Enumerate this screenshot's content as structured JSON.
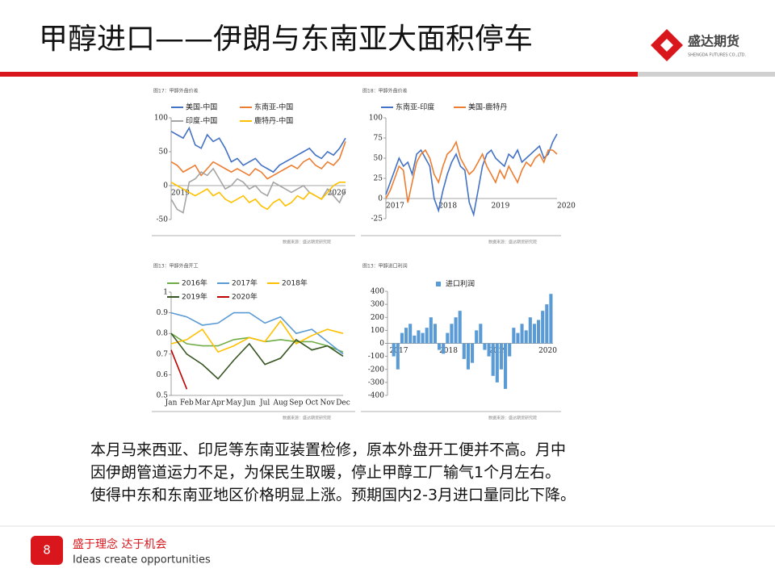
{
  "header": {
    "title": "甲醇进口——伊朗与东南亚大面积停车",
    "logo_text": "盛达期货",
    "logo_sub": "SHENGDA FUTURES CO.,LTD."
  },
  "chart_data": [
    {
      "type": "line",
      "title": "图17：甲醇外盘价差",
      "source": "数据来源：盛达期货研究院",
      "ylim": [
        -50,
        100
      ],
      "yticks": [
        -50,
        0,
        50,
        100
      ],
      "categories": [
        "2019",
        null,
        null,
        null,
        null,
        null,
        null,
        null,
        null,
        null,
        null,
        null,
        null,
        null,
        null,
        null,
        null,
        null,
        null,
        null,
        null,
        null,
        null,
        null,
        null,
        null,
        "2020",
        null,
        null,
        null
      ],
      "series": [
        {
          "name": "美国-中国",
          "color": "#4472c4",
          "values": [
            80,
            75,
            70,
            85,
            60,
            55,
            75,
            65,
            70,
            55,
            35,
            40,
            30,
            35,
            40,
            30,
            25,
            20,
            30,
            35,
            40,
            45,
            50,
            55,
            45,
            40,
            50,
            45,
            55,
            70
          ]
        },
        {
          "name": "东南亚-中国",
          "color": "#ed7d31",
          "values": [
            35,
            30,
            20,
            25,
            30,
            15,
            25,
            35,
            30,
            25,
            20,
            25,
            20,
            15,
            25,
            20,
            10,
            15,
            20,
            25,
            30,
            25,
            35,
            40,
            30,
            25,
            35,
            30,
            40,
            65
          ]
        },
        {
          "name": "印度-中国",
          "color": "#a5a5a5",
          "values": [
            -20,
            -35,
            -40,
            5,
            10,
            20,
            15,
            25,
            10,
            -5,
            0,
            10,
            5,
            -5,
            0,
            -10,
            -15,
            5,
            0,
            -5,
            -10,
            -5,
            0,
            -10,
            -15,
            -20,
            -5,
            -15,
            -25,
            -5
          ]
        },
        {
          "name": "鹿特丹-中国",
          "color": "#ffc000",
          "values": [
            5,
            0,
            -5,
            -10,
            -15,
            -10,
            -5,
            -15,
            -10,
            -20,
            -25,
            -20,
            -15,
            -25,
            -20,
            -30,
            -35,
            -25,
            -20,
            -30,
            -25,
            -15,
            -20,
            -10,
            -15,
            -20,
            -10,
            0,
            5,
            5
          ]
        }
      ]
    },
    {
      "type": "line",
      "title": "图18：甲醇外盘价差",
      "source": "数据来源：盛达期货研究院",
      "ylim": [
        -25,
        100
      ],
      "yticks": [
        -25,
        0,
        25,
        50,
        75,
        100
      ],
      "categories": [
        "2017",
        null,
        null,
        null,
        null,
        null,
        null,
        null,
        null,
        null,
        null,
        null,
        "2018",
        null,
        null,
        null,
        null,
        null,
        null,
        null,
        null,
        null,
        null,
        null,
        "2019",
        null,
        null,
        null,
        null,
        null,
        null,
        null,
        null,
        null,
        null,
        null,
        null,
        null,
        null,
        "2020"
      ],
      "series": [
        {
          "name": "东南亚-印度",
          "color": "#4472c4",
          "values": [
            5,
            20,
            35,
            50,
            40,
            45,
            30,
            55,
            60,
            50,
            40,
            0,
            -15,
            10,
            30,
            45,
            55,
            40,
            35,
            -5,
            -20,
            10,
            40,
            55,
            60,
            50,
            45,
            40,
            55,
            50,
            60,
            45,
            50,
            55,
            60,
            65,
            50,
            55,
            70,
            80
          ]
        },
        {
          "name": "美国-鹿特丹",
          "color": "#ed7d31",
          "values": [
            0,
            10,
            25,
            40,
            35,
            -5,
            20,
            45,
            55,
            60,
            50,
            30,
            20,
            40,
            55,
            60,
            70,
            50,
            40,
            30,
            35,
            45,
            55,
            40,
            30,
            20,
            35,
            25,
            40,
            30,
            20,
            35,
            45,
            40,
            50,
            55,
            45,
            60,
            60,
            55
          ]
        }
      ]
    },
    {
      "type": "line",
      "title": "图13：甲醇外盘开工",
      "source": "数据来源：盛达期货研究院",
      "ylim": [
        0.5,
        1
      ],
      "yticks": [
        0.5,
        0.6,
        0.7,
        0.8,
        0.9,
        1
      ],
      "categories": [
        "Jan",
        "Feb",
        "Mar",
        "Apr",
        "May",
        "Jun",
        "Jul",
        "Aug",
        "Sep",
        "Oct",
        "Nov",
        "Dec"
      ],
      "series": [
        {
          "name": "2016年",
          "color": "#70ad47",
          "values": [
            0.8,
            0.75,
            0.74,
            0.74,
            0.77,
            0.78,
            0.76,
            0.77,
            0.76,
            0.76,
            0.74,
            0.71
          ]
        },
        {
          "name": "2017年",
          "color": "#5b9bd5",
          "values": [
            0.9,
            0.88,
            0.84,
            0.85,
            0.9,
            0.9,
            0.85,
            0.88,
            0.8,
            0.82,
            0.76,
            0.7
          ]
        },
        {
          "name": "2018年",
          "color": "#ffc000",
          "values": [
            0.75,
            0.77,
            0.82,
            0.71,
            0.74,
            0.78,
            0.76,
            0.86,
            0.75,
            0.79,
            0.82,
            0.8
          ]
        },
        {
          "name": "2019年",
          "color": "#375623",
          "values": [
            0.8,
            0.7,
            0.65,
            0.58,
            0.67,
            0.75,
            0.65,
            0.68,
            0.77,
            0.72,
            0.74,
            0.69
          ]
        },
        {
          "name": "2020年",
          "color": "#c00000",
          "values": [
            0.72,
            0.53,
            null,
            null,
            null,
            null,
            null,
            null,
            null,
            null,
            null,
            null
          ]
        }
      ]
    },
    {
      "type": "bar",
      "title": "图13：甲醇进口利润",
      "source": "数据来源：盛达期货研究院",
      "ylim": [
        -400,
        400
      ],
      "yticks": [
        -400,
        -300,
        -200,
        -100,
        0,
        100,
        200,
        300,
        400
      ],
      "categories": [
        "2017",
        null,
        null,
        null,
        null,
        null,
        null,
        null,
        null,
        null,
        null,
        null,
        "2018",
        null,
        null,
        null,
        null,
        null,
        null,
        null,
        null,
        null,
        null,
        null,
        "2019",
        null,
        null,
        null,
        null,
        null,
        null,
        null,
        null,
        null,
        null,
        null,
        "2020",
        null,
        null,
        null
      ],
      "series": [
        {
          "name": "进口利润",
          "color": "#5b9bd5",
          "values": [
            0,
            -100,
            -200,
            80,
            120,
            150,
            60,
            100,
            80,
            120,
            200,
            150,
            -50,
            -80,
            80,
            150,
            200,
            250,
            -120,
            -200,
            -150,
            100,
            150,
            -50,
            -100,
            -250,
            -300,
            -200,
            -350,
            -100,
            120,
            80,
            150,
            100,
            200,
            150,
            180,
            250,
            300,
            380
          ]
        }
      ]
    }
  ],
  "body": {
    "lines": [
      "本月马来西亚、印尼等东南亚装置检修，原本外盘开工便并不高。月中",
      "因伊朗管道运力不足，为保民生取暖，停止甲醇工厂输气1个月左右。",
      "使得中东和东南亚地区价格明显上涨。预期国内2-3月进口量同比下降。"
    ]
  },
  "footer": {
    "page": "8",
    "slogan_cn": "盛于理念 达于机会",
    "slogan_en": "Ideas create opportunities"
  }
}
